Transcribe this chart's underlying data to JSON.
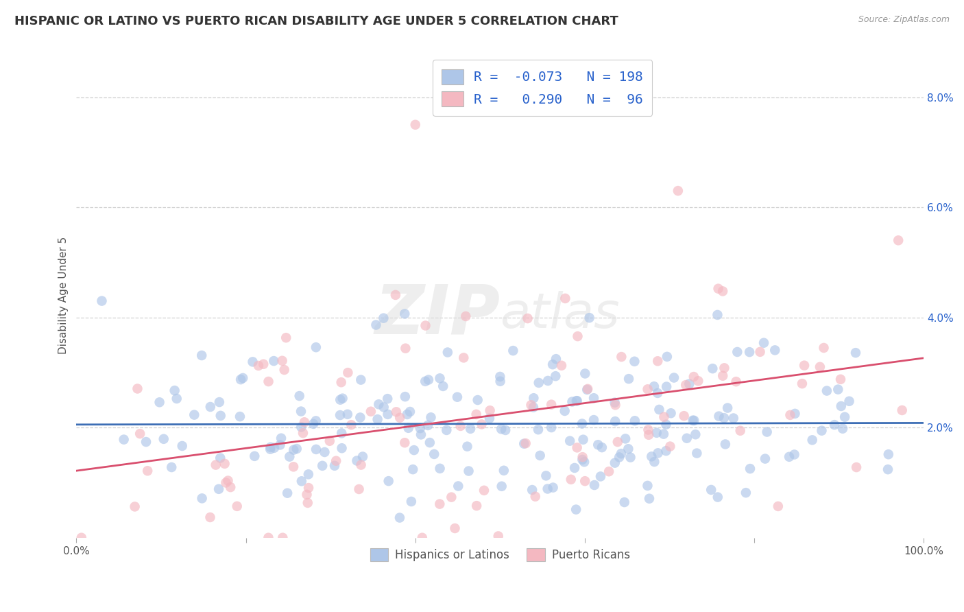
{
  "title": "HISPANIC OR LATINO VS PUERTO RICAN DISABILITY AGE UNDER 5 CORRELATION CHART",
  "source": "Source: ZipAtlas.com",
  "ylabel": "Disability Age Under 5",
  "xlim": [
    0,
    1
  ],
  "ylim": [
    0,
    0.088
  ],
  "yticks": [
    0.02,
    0.04,
    0.06,
    0.08
  ],
  "ytick_labels": [
    "2.0%",
    "4.0%",
    "6.0%",
    "8.0%"
  ],
  "xticks": [
    0.0,
    0.2,
    0.4,
    0.6,
    0.8,
    1.0
  ],
  "xtick_labels": [
    "0.0%",
    "",
    "",
    "",
    "",
    "100.0%"
  ],
  "legend_entries": [
    {
      "label": "Hispanics or Latinos",
      "color": "#aec6e8",
      "r": -0.073,
      "n": 198
    },
    {
      "label": "Puerto Ricans",
      "color": "#f4b8c1",
      "r": 0.29,
      "n": 96
    }
  ],
  "blue_color": "#aec6e8",
  "pink_color": "#f4b8c1",
  "blue_line_color": "#3d6eb5",
  "pink_line_color": "#d94f6e",
  "background_color": "#ffffff",
  "grid_color": "#cccccc",
  "title_fontsize": 13,
  "axis_label_fontsize": 11,
  "tick_fontsize": 11,
  "legend_r_color": "#2962cc",
  "n_blue": 198,
  "n_pink": 96,
  "r_blue": -0.073,
  "r_pink": 0.29,
  "seed": 7
}
